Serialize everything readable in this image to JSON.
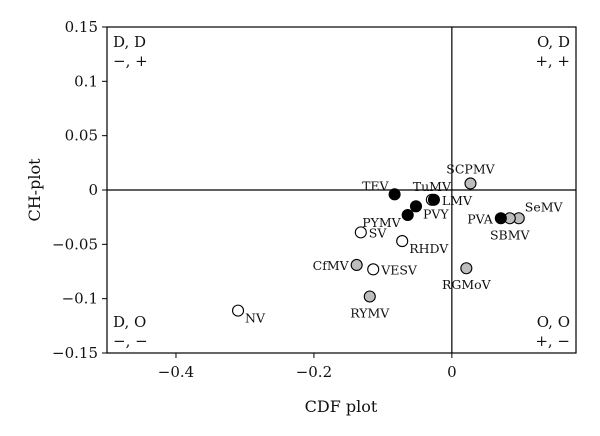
{
  "chart_data": {
    "type": "scatter",
    "xlabel": "CDF plot",
    "ylabel": "CH-plot",
    "xlim": [
      -0.5,
      0.18
    ],
    "ylim": [
      -0.15,
      0.15
    ],
    "xticks": [
      {
        "value": -0.4,
        "label": "−0.4"
      },
      {
        "value": -0.2,
        "label": "−0.2"
      },
      {
        "value": 0,
        "label": "0"
      }
    ],
    "yticks": [
      {
        "value": 0.15,
        "label": "0.15"
      },
      {
        "value": 0.1,
        "label": "0.1"
      },
      {
        "value": 0.05,
        "label": "0.05"
      },
      {
        "value": 0,
        "label": "0"
      },
      {
        "value": -0.05,
        "label": "−0.05"
      },
      {
        "value": -0.1,
        "label": "−0.1"
      },
      {
        "value": -0.15,
        "label": "−0.15"
      }
    ],
    "reference_lines": {
      "x": 0,
      "y": 0
    },
    "marker_colors": {
      "black": "#000000",
      "white": "#ffffff",
      "gray": "#bdbdbd"
    },
    "quadrants": [
      {
        "id": "top-left",
        "line1": "D, D",
        "line2": "−, +"
      },
      {
        "id": "top-right",
        "line1": "O, D",
        "line2": "+, +"
      },
      {
        "id": "bottom-left",
        "line1": "D, O",
        "line2": "−, −"
      },
      {
        "id": "bottom-right",
        "line1": "O, O",
        "line2": "+, −"
      }
    ],
    "points": [
      {
        "label": "TEV",
        "x": -0.083,
        "y": -0.004,
        "fill": "black",
        "label_pos": "left-up"
      },
      {
        "label": "TuMV",
        "x": -0.026,
        "y": -0.009,
        "fill": "black",
        "label_pos": "above"
      },
      {
        "label": "LMV",
        "x": -0.029,
        "y": -0.009,
        "fill": "white",
        "label_pos": "right"
      },
      {
        "label": "PVY",
        "x": -0.052,
        "y": -0.015,
        "fill": "black",
        "label_pos": "right-down"
      },
      {
        "label": "PYMV",
        "x": -0.064,
        "y": -0.023,
        "fill": "black",
        "label_pos": "left-down"
      },
      {
        "label": "SV",
        "x": -0.132,
        "y": -0.039,
        "fill": "white",
        "label_pos": "right"
      },
      {
        "label": "RHDV",
        "x": -0.072,
        "y": -0.047,
        "fill": "white",
        "label_pos": "right-down"
      },
      {
        "label": "CfMV",
        "x": -0.138,
        "y": -0.069,
        "fill": "gray",
        "label_pos": "left"
      },
      {
        "label": "VESV",
        "x": -0.114,
        "y": -0.073,
        "fill": "white",
        "label_pos": "right"
      },
      {
        "label": "RYMV",
        "x": -0.119,
        "y": -0.098,
        "fill": "gray",
        "label_pos": "below"
      },
      {
        "label": "NV",
        "x": -0.31,
        "y": -0.111,
        "fill": "white",
        "label_pos": "right-down"
      },
      {
        "label": "SCPMV",
        "x": 0.027,
        "y": 0.006,
        "fill": "gray",
        "label_pos": "above"
      },
      {
        "label": "PVA",
        "x": 0.071,
        "y": -0.026,
        "fill": "black",
        "label_pos": "left"
      },
      {
        "label": "SeMV",
        "x": 0.097,
        "y": -0.026,
        "fill": "gray",
        "label_pos": "right-up"
      },
      {
        "label": "SBMV",
        "x": 0.084,
        "y": -0.026,
        "fill": "gray",
        "label_pos": "below"
      },
      {
        "label": "RGMoV",
        "x": 0.021,
        "y": -0.072,
        "fill": "gray",
        "label_pos": "below"
      }
    ]
  }
}
